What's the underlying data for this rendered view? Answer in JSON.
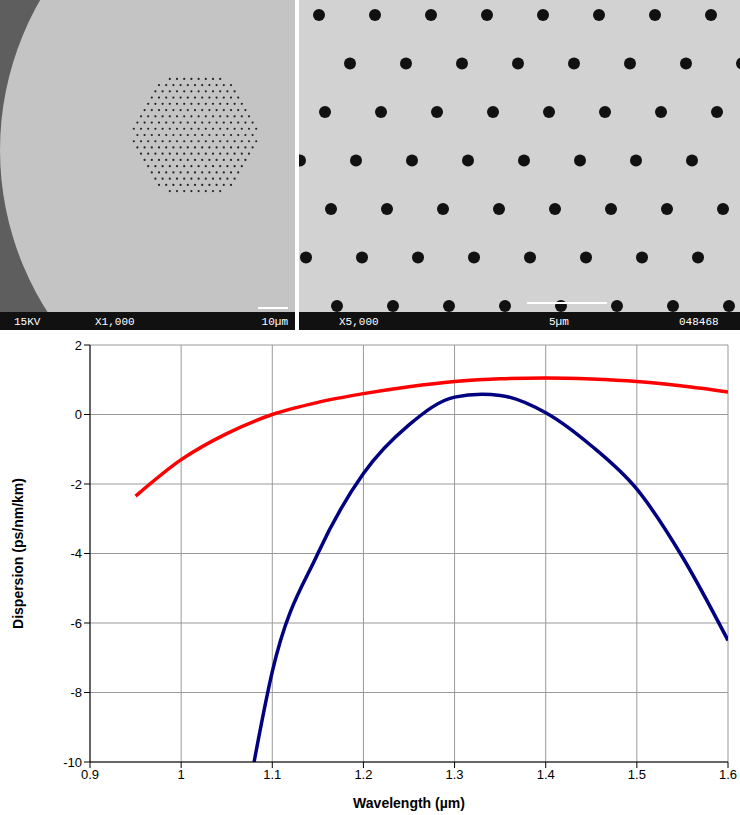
{
  "chart_data": {
    "type": "line",
    "x_label": "Wavelength (µm)",
    "y_label": "Dispersion (ps/nm/km)",
    "xlim": [
      0.9,
      1.6
    ],
    "xticks": [
      0.9,
      1,
      1.1,
      1.2,
      1.3,
      1.4,
      1.5,
      1.6
    ],
    "ylim": [
      -10,
      2
    ],
    "yticks": [
      -10,
      -8,
      -6,
      -4,
      -2,
      0,
      2
    ],
    "grid": true,
    "series": [
      {
        "color": "#ff0000",
        "x": [
          0.95,
          1.0,
          1.05,
          1.1,
          1.15,
          1.2,
          1.25,
          1.3,
          1.35,
          1.4,
          1.45,
          1.5,
          1.55,
          1.6
        ],
        "values": [
          -2.35,
          -1.3,
          -0.55,
          0.0,
          0.35,
          0.6,
          0.8,
          0.95,
          1.03,
          1.05,
          1.02,
          0.95,
          0.82,
          0.65
        ]
      },
      {
        "color": "#000080",
        "x": [
          1.08,
          1.1,
          1.15,
          1.2,
          1.25,
          1.3,
          1.33,
          1.35,
          1.4,
          1.45,
          1.5,
          1.55,
          1.6
        ],
        "values": [
          -10,
          -7.4,
          -4.0,
          -1.7,
          -0.3,
          0.5,
          0.58,
          0.55,
          0.05,
          -0.9,
          -2.15,
          -4.1,
          -6.5
        ]
      }
    ]
  },
  "micrographs": [
    {
      "labels": [
        "15KV",
        "X1,000",
        "10µm"
      ]
    },
    {
      "labels": [
        "X5,000",
        "5µm",
        "048468"
      ]
    }
  ]
}
